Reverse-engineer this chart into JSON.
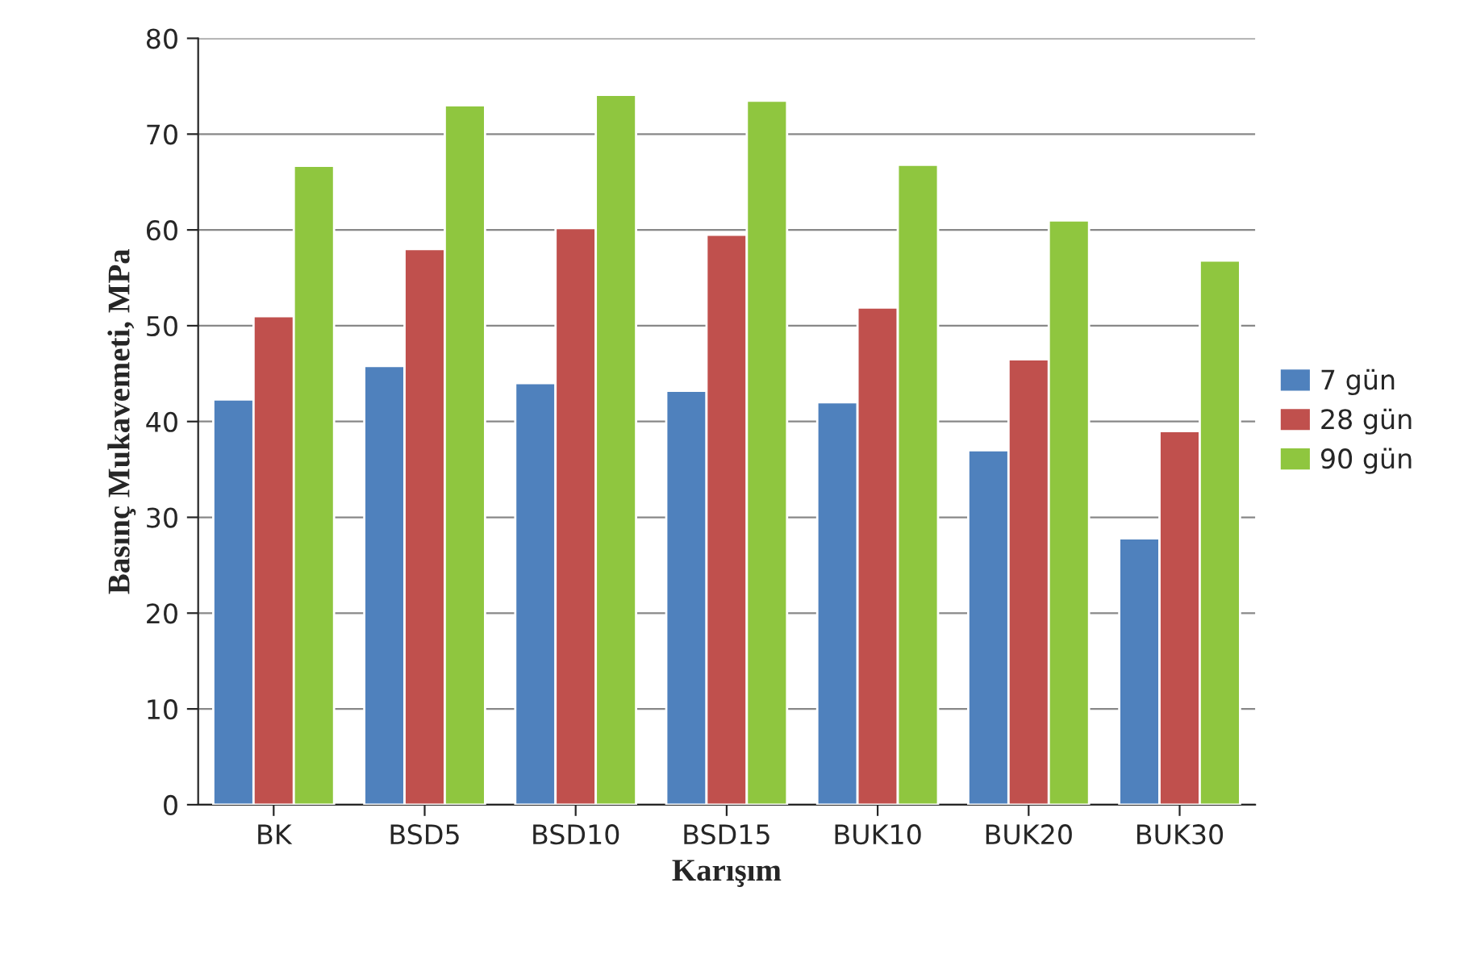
{
  "chart_data": {
    "type": "bar",
    "xlabel": "Karışım",
    "ylabel": "Basınç Mukavemeti, MPa",
    "categories": [
      "BK",
      "BSD5",
      "BSD10",
      "BSD15",
      "BUK10",
      "BUK20",
      "BUK30"
    ],
    "series": [
      {
        "name": "7 gün",
        "color": "#4f81bd",
        "values": [
          42.3,
          45.8,
          44,
          43.2,
          42,
          37,
          27.8
        ]
      },
      {
        "name": "28 gün",
        "color": "#c0504d",
        "values": [
          51,
          58,
          60.2,
          59.5,
          51.9,
          46.5,
          39
        ]
      },
      {
        "name": "90 gün",
        "color": "#8fc63f",
        "values": [
          66.7,
          73,
          74.1,
          73.5,
          66.8,
          61,
          56.8
        ]
      }
    ],
    "ylim": [
      0,
      80
    ],
    "yticks": [
      0,
      10,
      20,
      30,
      40,
      50,
      60,
      70,
      80
    ],
    "grid": "y",
    "legend": "right"
  }
}
